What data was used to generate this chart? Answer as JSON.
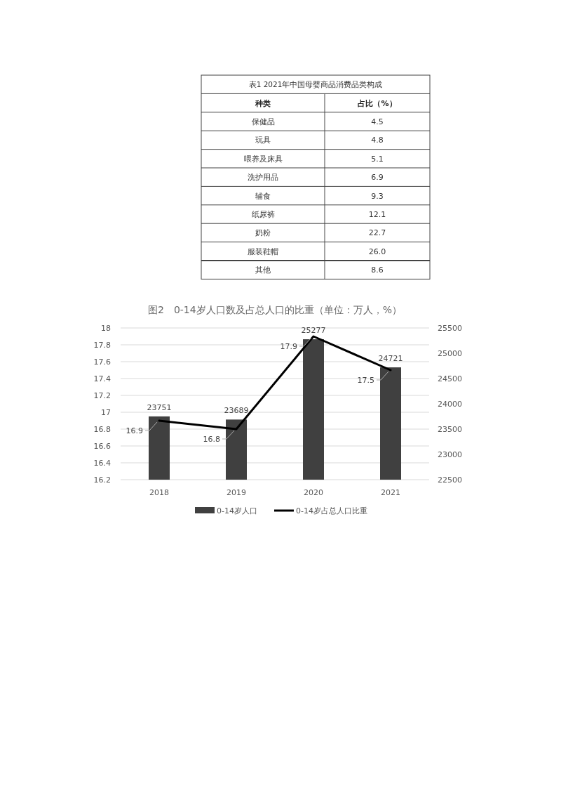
{
  "chart_data": [
    {
      "type": "other",
      "title": "表1 2021年中国母婴商品消费品类构成",
      "xlabel": "种类",
      "ylabel": "占比（%）",
      "categories": [
        "保健品",
        "玩具",
        "喂养及床具",
        "洗护用品",
        "辅食",
        "纸尿裤",
        "奶粉",
        "服装鞋帽",
        "其他"
      ],
      "values": [
        4.5,
        4.8,
        5.1,
        6.9,
        9.3,
        12.1,
        22.7,
        26.0,
        8.6
      ],
      "value_labels": [
        "4.5",
        "4.8",
        "5.1",
        "6.9",
        "9.3",
        "12.1",
        "22.7",
        "26.0",
        "8.6"
      ]
    },
    {
      "type": "bar",
      "title": "图2　0-14岁人口数及占总人口的比重（单位：万人，%）",
      "categories": [
        "2018",
        "2019",
        "2020",
        "2021"
      ],
      "series": [
        {
          "name": "0-14岁人口",
          "type": "bar",
          "axis": "y2",
          "color": "#404040",
          "values": [
            23751,
            23689,
            25277,
            24721
          ]
        },
        {
          "name": "0-14岁占总人口比重",
          "type": "line",
          "color": "#000000",
          "values": [
            16.9,
            16.8,
            17.9,
            17.5
          ]
        }
      ],
      "ylim": [
        16.2,
        18
      ],
      "yticks": [
        16.2,
        16.4,
        16.6,
        16.8,
        17,
        17.2,
        17.4,
        17.6,
        17.8,
        18
      ],
      "y2lim": [
        22500,
        25500
      ],
      "y2ticks": [
        22500,
        23000,
        23500,
        24000,
        24500,
        25000,
        25500
      ],
      "grid": "y",
      "legend": "bottom",
      "data_labels": true
    }
  ]
}
